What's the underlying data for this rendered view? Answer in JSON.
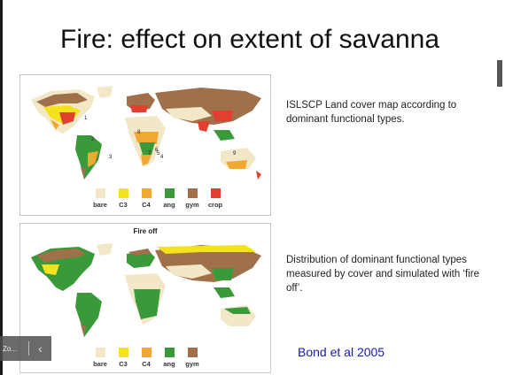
{
  "slide": {
    "title": "Fire: effect on extent of savanna",
    "caption_top": "ISLSCP Land cover map according to dominant functional types.",
    "caption_bottom": "Distribution of dominant functional types measured by cover and simulated with ‘fire off’.",
    "citation": "Bond et al 2005"
  },
  "map1": {
    "legend": [
      {
        "label": "bare",
        "color": "#f2e8c8"
      },
      {
        "label": "C3",
        "color": "#f5e21e"
      },
      {
        "label": "C4",
        "color": "#f0a832"
      },
      {
        "label": "ang",
        "color": "#3a9a3a"
      },
      {
        "label": "gym",
        "color": "#a0704a"
      },
      {
        "label": "crop",
        "color": "#e04030"
      }
    ],
    "markers": [
      "1",
      "2",
      "3",
      "4",
      "5",
      "6",
      "7",
      "8",
      "9"
    ]
  },
  "map2": {
    "heading": "Fire off",
    "legend": [
      {
        "label": "bare",
        "color": "#f2e8c8"
      },
      {
        "label": "C3",
        "color": "#f5e21e"
      },
      {
        "label": "C4",
        "color": "#f0a832"
      },
      {
        "label": "ang",
        "color": "#3a9a3a"
      },
      {
        "label": "gym",
        "color": "#a0704a"
      }
    ]
  },
  "viewer": {
    "zoom_label": "Zo...",
    "prev_icon": "chevron-left-icon"
  }
}
